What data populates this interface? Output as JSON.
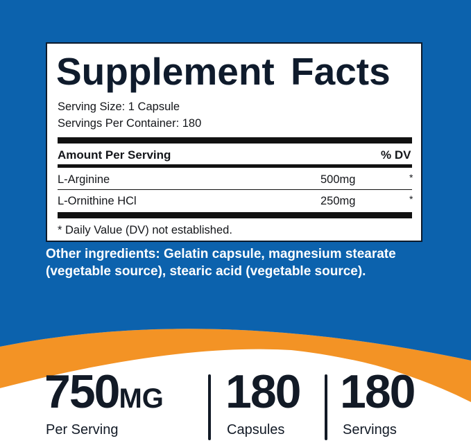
{
  "colors": {
    "background_blue": "#0c62ad",
    "accent_orange": "#f39325",
    "text_dark": "#121a26"
  },
  "facts": {
    "title": "Supplement Facts",
    "serving_size": "Serving Size: 1 Capsule",
    "servings_per_container": "Servings Per Container: 180",
    "header_left": "Amount Per Serving",
    "header_right": "% DV",
    "rows": [
      {
        "name": "L-Arginine",
        "amount": "500mg",
        "dv": "*"
      },
      {
        "name": "L-Ornithine HCl",
        "amount": "250mg",
        "dv": "*"
      }
    ],
    "footnote": "* Daily Value (DV) not established."
  },
  "other_ingredients": "Other ingredients: Gelatin capsule, magnesium stearate (vegetable source), stearic acid (vegetable source).",
  "stats": [
    {
      "value": "750",
      "unit": "MG",
      "label": "Per Serving"
    },
    {
      "value": "180",
      "unit": "",
      "label": "Capsules"
    },
    {
      "value": "180",
      "unit": "",
      "label": "Servings"
    }
  ]
}
